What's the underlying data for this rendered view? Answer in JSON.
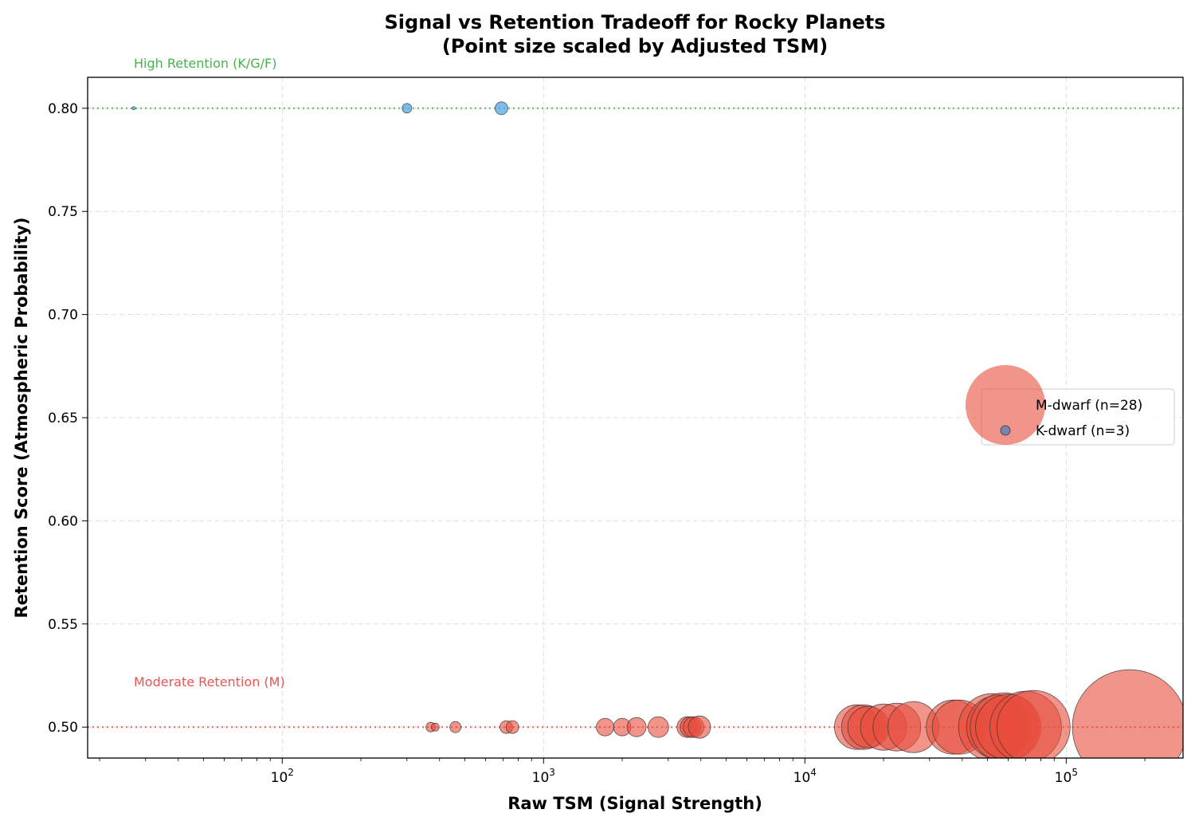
{
  "chart_data": {
    "type": "scatter",
    "title": "Signal vs Retention Tradeoff for Rocky Planets",
    "subtitle": "(Point size scaled by Adjusted TSM)",
    "xlabel": "Raw TSM (Signal Strength)",
    "ylabel": "Retention Score (Atmospheric Probability)",
    "xscale": "log",
    "xlim": [
      18,
      280000
    ],
    "ylim": [
      0.485,
      0.815
    ],
    "grid": true,
    "legend_position": "center-right",
    "x_ticks": [
      {
        "value": 100,
        "base": "10",
        "exp": "2"
      },
      {
        "value": 1000,
        "base": "10",
        "exp": "3"
      },
      {
        "value": 10000,
        "base": "10",
        "exp": "4"
      },
      {
        "value": 100000,
        "base": "10",
        "exp": "5"
      }
    ],
    "y_ticks": [
      {
        "value": 0.5,
        "label": "0.50"
      },
      {
        "value": 0.55,
        "label": "0.55"
      },
      {
        "value": 0.6,
        "label": "0.60"
      },
      {
        "value": 0.65,
        "label": "0.65"
      },
      {
        "value": 0.7,
        "label": "0.70"
      },
      {
        "value": 0.75,
        "label": "0.75"
      },
      {
        "value": 0.8,
        "label": "0.80"
      }
    ],
    "reference_lines": [
      {
        "y": 0.8,
        "label": "High Retention (K/G/F)",
        "color": "#4caf50"
      },
      {
        "y": 0.5,
        "label": "Moderate Retention (M)",
        "color": "#ef5350"
      }
    ],
    "series": [
      {
        "name": "M-dwarf (n=28)",
        "color": "#e74c3c",
        "points": [
          {
            "x": 370,
            "y": 0.5,
            "size": 6
          },
          {
            "x": 385,
            "y": 0.5,
            "size": 5
          },
          {
            "x": 460,
            "y": 0.5,
            "size": 7
          },
          {
            "x": 720,
            "y": 0.5,
            "size": 8
          },
          {
            "x": 760,
            "y": 0.5,
            "size": 8
          },
          {
            "x": 1720,
            "y": 0.5,
            "size": 11
          },
          {
            "x": 2000,
            "y": 0.5,
            "size": 11
          },
          {
            "x": 2270,
            "y": 0.5,
            "size": 12
          },
          {
            "x": 2750,
            "y": 0.5,
            "size": 13
          },
          {
            "x": 3550,
            "y": 0.5,
            "size": 13
          },
          {
            "x": 3650,
            "y": 0.5,
            "size": 13
          },
          {
            "x": 3750,
            "y": 0.5,
            "size": 13
          },
          {
            "x": 3950,
            "y": 0.5,
            "size": 14
          },
          {
            "x": 15800,
            "y": 0.5,
            "size": 28
          },
          {
            "x": 16800,
            "y": 0.5,
            "size": 28
          },
          {
            "x": 17500,
            "y": 0.5,
            "size": 26
          },
          {
            "x": 20000,
            "y": 0.5,
            "size": 29
          },
          {
            "x": 22500,
            "y": 0.5,
            "size": 30
          },
          {
            "x": 26000,
            "y": 0.5,
            "size": 32
          },
          {
            "x": 37000,
            "y": 0.5,
            "size": 34
          },
          {
            "x": 39000,
            "y": 0.5,
            "size": 34
          },
          {
            "x": 52000,
            "y": 0.5,
            "size": 42
          },
          {
            "x": 55000,
            "y": 0.5,
            "size": 40
          },
          {
            "x": 58000,
            "y": 0.5,
            "size": 43
          },
          {
            "x": 60000,
            "y": 0.5,
            "size": 41
          },
          {
            "x": 70000,
            "y": 0.5,
            "size": 45
          },
          {
            "x": 75000,
            "y": 0.5,
            "size": 46
          },
          {
            "x": 175000,
            "y": 0.5,
            "size": 72
          }
        ]
      },
      {
        "name": "K-dwarf (n=3)",
        "color": "#5dade2",
        "points": [
          {
            "x": 27,
            "y": 0.8,
            "size": 2
          },
          {
            "x": 300,
            "y": 0.8,
            "size": 6
          },
          {
            "x": 690,
            "y": 0.8,
            "size": 8
          }
        ]
      }
    ]
  }
}
